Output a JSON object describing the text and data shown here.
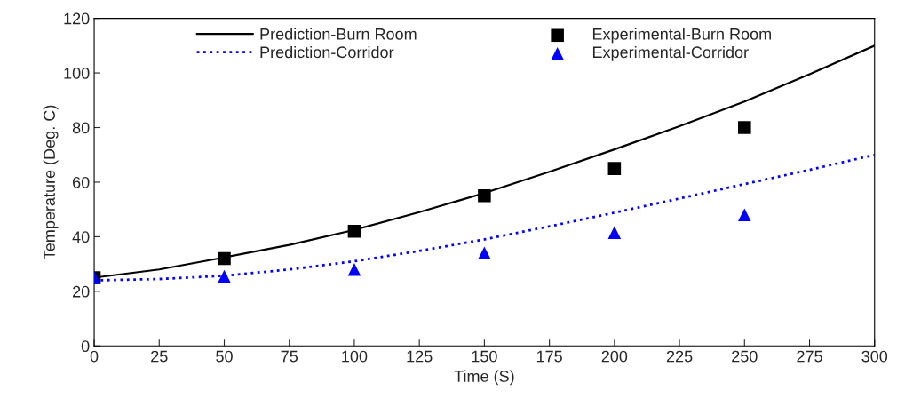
{
  "chart_data": {
    "type": "line",
    "xlabel": "Time (S)",
    "ylabel": "Temperature (Deg. C)",
    "xlim": [
      0,
      300
    ],
    "xticks": [
      0,
      25,
      50,
      75,
      100,
      125,
      150,
      175,
      200,
      225,
      250,
      275,
      300
    ],
    "ylim": [
      0,
      120
    ],
    "yticks": [
      0,
      20,
      40,
      60,
      80,
      100,
      120
    ],
    "grid": false,
    "legend": "top",
    "series": [
      {
        "name": "Prediction-Burn Room",
        "color": "#000000",
        "line_style": "solid",
        "x": [
          0,
          25,
          50,
          75,
          100,
          125,
          150,
          175,
          200,
          225,
          250,
          275,
          300
        ],
        "values": [
          25,
          28,
          32.4,
          37,
          42.5,
          49,
          56,
          63.8,
          72,
          80.5,
          89.5,
          99.5,
          110
        ]
      },
      {
        "name": "Prediction-Corridor",
        "color": "#0000ff",
        "line_style": "dotted",
        "x": [
          0,
          25,
          50,
          75,
          100,
          125,
          150,
          175,
          200,
          225,
          250,
          275,
          300
        ],
        "values": [
          24,
          24.5,
          25.7,
          28,
          31,
          34.8,
          39,
          43.8,
          48.8,
          54,
          59.3,
          64.5,
          70
        ]
      },
      {
        "name": "Experimental-Burn Room",
        "type": "scatter",
        "marker": "square",
        "color": "#000000",
        "x": [
          0,
          50,
          100,
          150,
          200,
          250
        ],
        "values": [
          25,
          32,
          42,
          55,
          65,
          80
        ]
      },
      {
        "name": "Experimental-Corridor",
        "type": "scatter",
        "marker": "triangle",
        "color": "#0000ff",
        "x": [
          0,
          50,
          100,
          150,
          200,
          250
        ],
        "values": [
          25,
          25.5,
          28,
          34,
          41.5,
          48
        ]
      }
    ]
  }
}
